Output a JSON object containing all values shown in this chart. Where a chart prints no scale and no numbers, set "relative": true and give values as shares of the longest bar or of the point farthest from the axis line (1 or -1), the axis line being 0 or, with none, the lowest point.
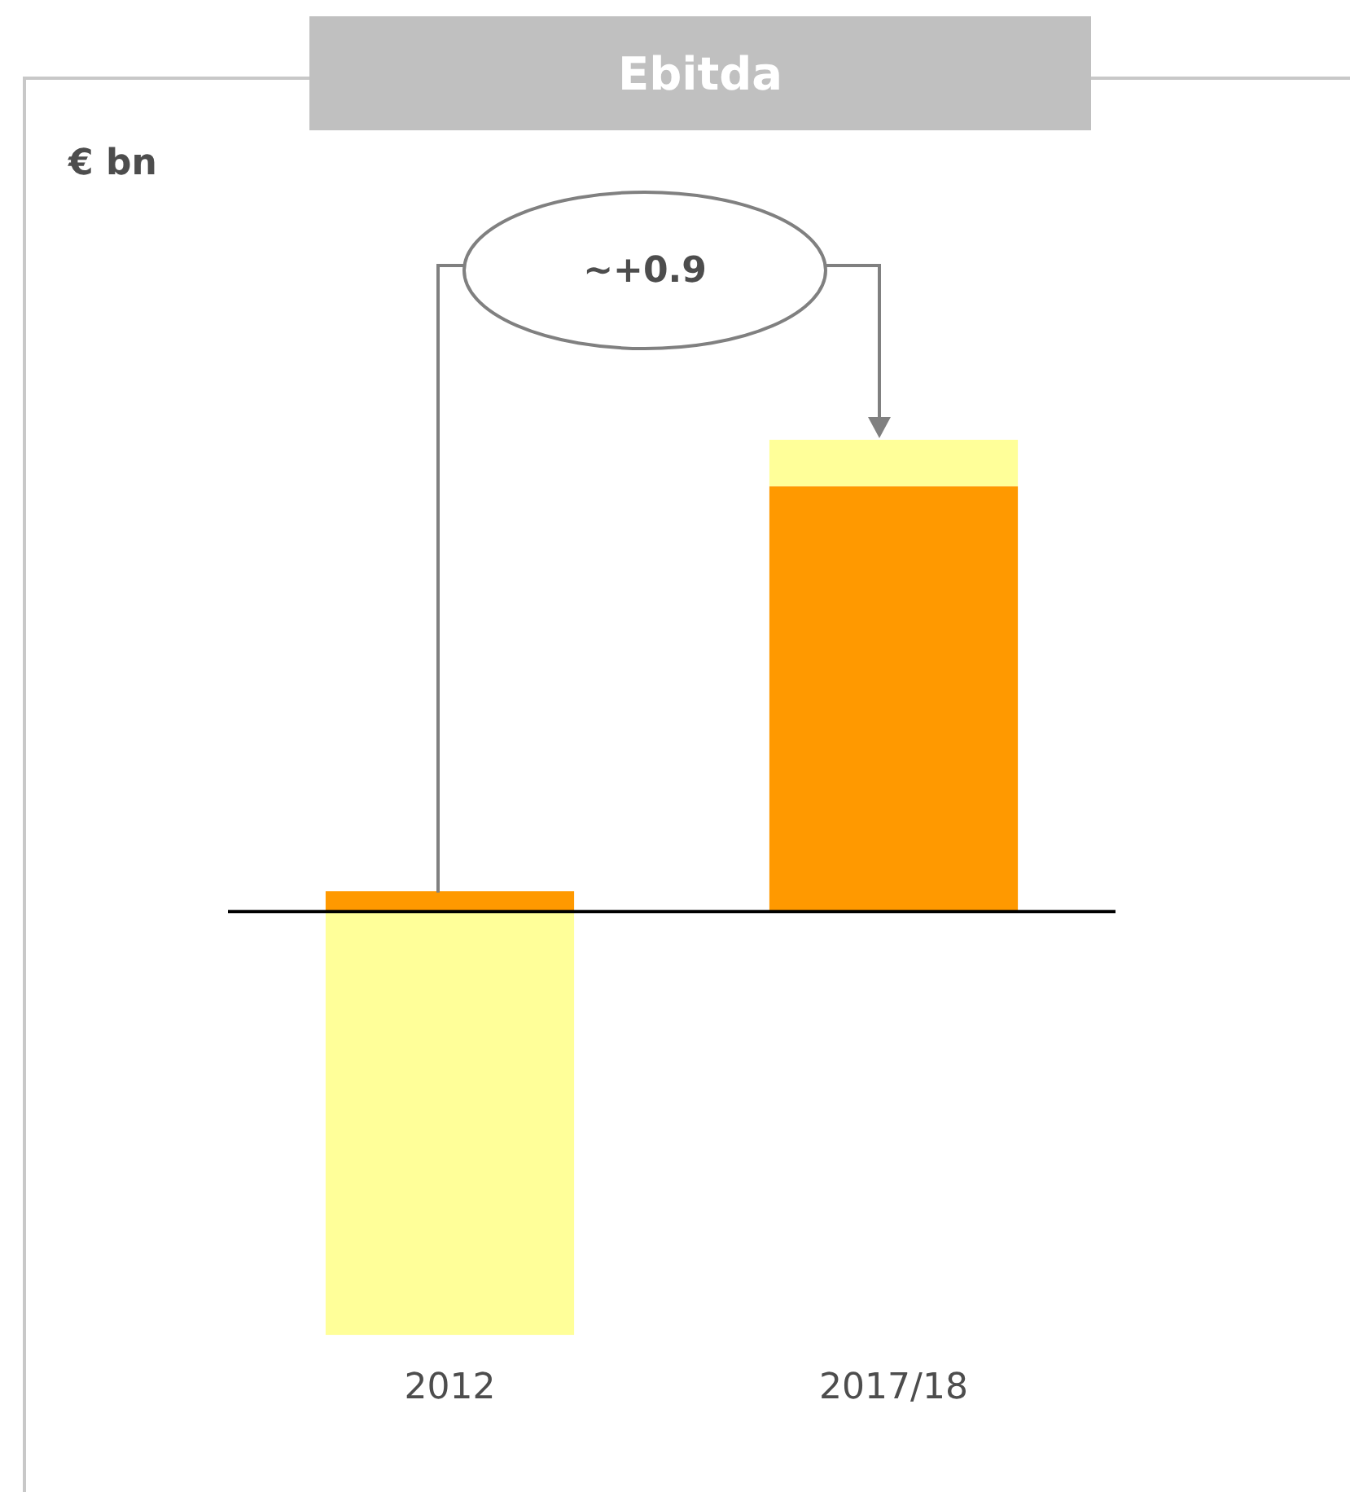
{
  "chart_data": {
    "type": "bar",
    "title": "Ebitda",
    "categories": [
      "2012",
      "2017/18"
    ],
    "stacked": true,
    "relative": true,
    "legend": false,
    "grid": false,
    "series": [
      {
        "color": "#ff9900",
        "values": [
          0.043,
          0.901
        ]
      },
      {
        "color": "#ffff99",
        "values": [
          -0.898,
          0.099
        ]
      }
    ],
    "annotations": [
      "€ bn",
      "~+0.9"
    ]
  }
}
